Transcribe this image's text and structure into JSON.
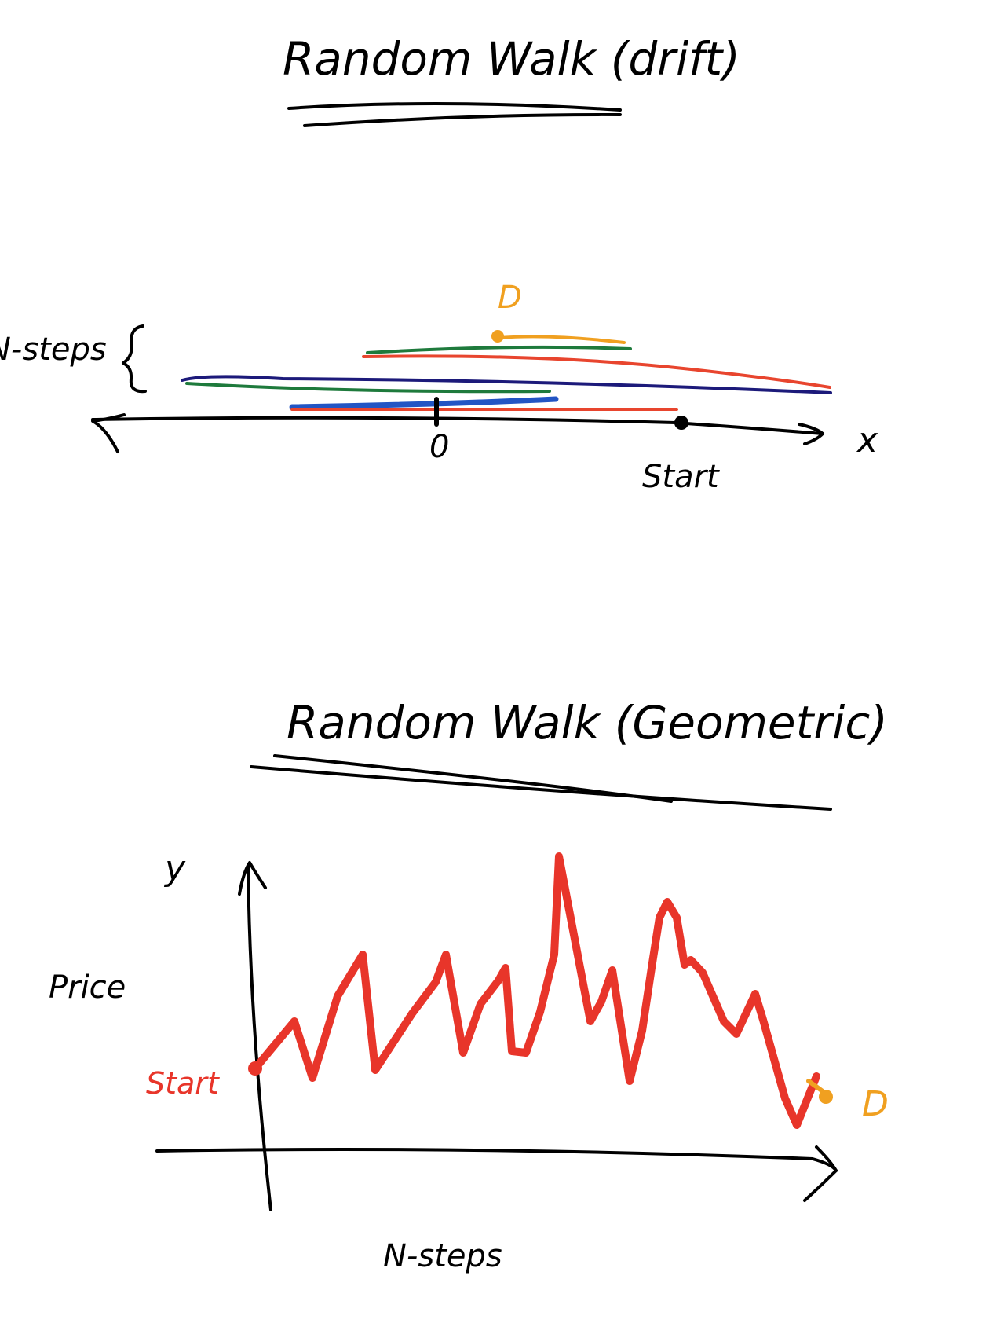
{
  "top_diagram": {
    "title": "Random Walk (drift)",
    "steps_label": "N-steps",
    "axis_label": "x",
    "zero_label": "0",
    "start_label": "Start",
    "end_label": "D",
    "colors": {
      "axis": "#000000",
      "walk_red": "#e8452e",
      "walk_green": "#1e7a3c",
      "walk_navy": "#1c1a7a",
      "walk_blue": "#2255c4",
      "end_marker": "#f0a020"
    }
  },
  "bottom_diagram": {
    "title": "Random Walk (Geometric)",
    "y_axis_label": "y",
    "y_axis_name": "Price",
    "x_axis_name": "N-steps",
    "start_label": "Start",
    "end_label": "D",
    "colors": {
      "axis": "#000000",
      "price_path": "#e8352a",
      "end_marker": "#f0a020"
    }
  }
}
